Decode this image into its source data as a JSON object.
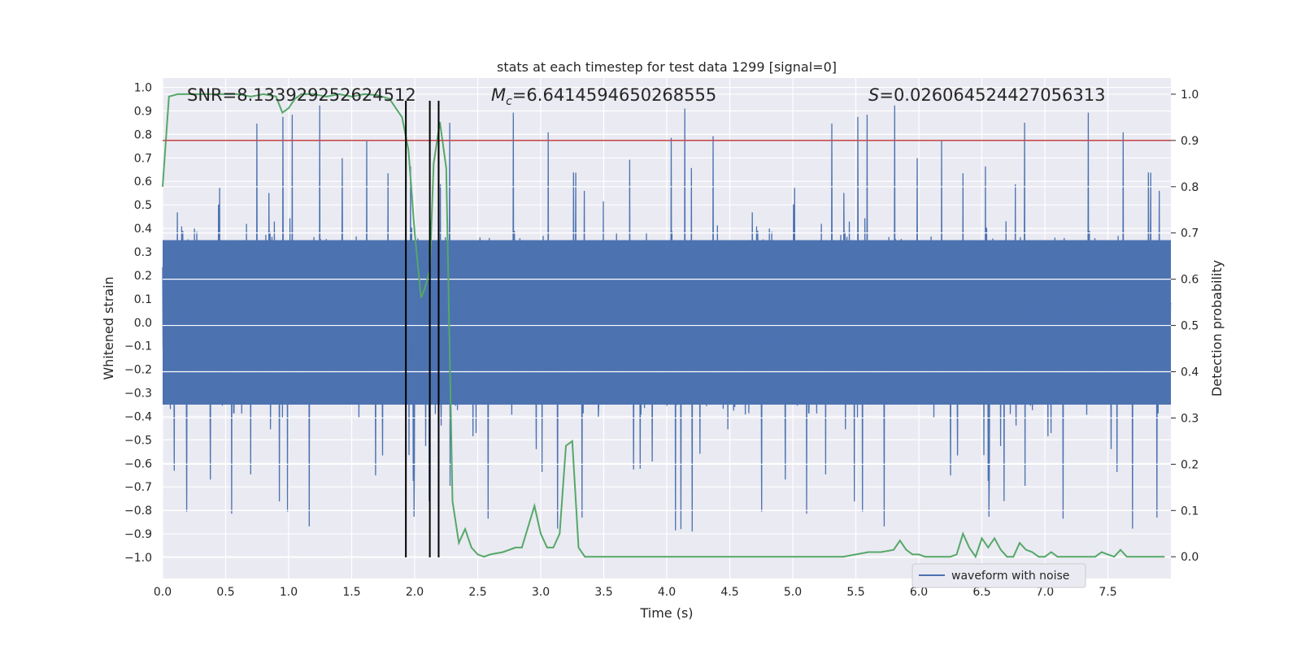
{
  "chart_data": {
    "type": "line",
    "title": "stats at each timestep for test data 1299 [signal=0]",
    "xlabel": "Time (s)",
    "ylabel": "Whitened strain",
    "y2label": "Detection probability",
    "xlim": [
      0.0,
      8.0
    ],
    "ylim": [
      -1.09,
      1.04
    ],
    "y2lim": [
      -0.047,
      1.035
    ],
    "x_ticks": [
      "0.0",
      "0.5",
      "1.0",
      "1.5",
      "2.0",
      "2.5",
      "3.0",
      "3.5",
      "4.0",
      "4.5",
      "5.0",
      "5.5",
      "6.0",
      "6.5",
      "7.0",
      "7.5"
    ],
    "y_ticks": [
      "1.0",
      "0.9",
      "0.8",
      "0.7",
      "0.6",
      "0.5",
      "0.4",
      "0.3",
      "0.2",
      "0.1",
      "0.0",
      "−0.1",
      "−0.2",
      "−0.3",
      "−0.4",
      "−0.5",
      "−0.6",
      "−0.7",
      "−0.8",
      "−0.9",
      "−1.0"
    ],
    "y2_ticks": [
      "1.0",
      "0.9",
      "0.8",
      "0.7",
      "0.6",
      "0.5",
      "0.4",
      "0.3",
      "0.2",
      "0.1",
      "0.0"
    ],
    "grid": true,
    "legend_position": "lower-right",
    "annotations": {
      "snr": "SNR=8.133929252624512",
      "mc_symbol": "M",
      "mc_sub": "c",
      "mc_value": "=6.6414594650268555",
      "s_symbol": "S",
      "s_value": "=0.026064524427056313"
    },
    "series": [
      {
        "name": "waveform with noise",
        "color": "#4c72b0",
        "axis": "left",
        "kind": "noise",
        "envelope_typical": 0.42,
        "peak_max": 0.95,
        "trough_min": -1.0
      },
      {
        "color": "#55a868",
        "axis": "right",
        "x": [
          0.0,
          0.05,
          0.12,
          0.2,
          0.3,
          0.4,
          0.5,
          0.6,
          0.7,
          0.8,
          0.9,
          0.95,
          1.0,
          1.05,
          1.1,
          1.2,
          1.3,
          1.4,
          1.5,
          1.6,
          1.7,
          1.8,
          1.9,
          1.95,
          2.0,
          2.05,
          2.08,
          2.12,
          2.15,
          2.2,
          2.25,
          2.3,
          2.35,
          2.4,
          2.45,
          2.5,
          2.55,
          2.6,
          2.7,
          2.8,
          2.85,
          2.95,
          3.0,
          3.05,
          3.1,
          3.15,
          3.2,
          3.25,
          3.3,
          3.35,
          3.4,
          3.45,
          3.5,
          3.6,
          3.8,
          4.0,
          4.2,
          4.4,
          4.6,
          4.8,
          5.0,
          5.2,
          5.4,
          5.6,
          5.7,
          5.8,
          5.85,
          5.9,
          5.95,
          6.0,
          6.05,
          6.1,
          6.15,
          6.2,
          6.25,
          6.3,
          6.35,
          6.4,
          6.45,
          6.5,
          6.55,
          6.6,
          6.65,
          6.7,
          6.75,
          6.8,
          6.85,
          6.9,
          6.95,
          7.0,
          7.05,
          7.1,
          7.15,
          7.2,
          7.3,
          7.4,
          7.45,
          7.5,
          7.55,
          7.6,
          7.65,
          7.7,
          7.75,
          7.8,
          7.85,
          7.9,
          7.95
        ],
        "y": [
          0.8,
          0.995,
          1.0,
          1.0,
          1.0,
          1.0,
          1.0,
          1.0,
          0.995,
          1.0,
          0.995,
          0.96,
          0.97,
          0.99,
          1.0,
          1.0,
          0.995,
          1.0,
          0.995,
          1.0,
          0.998,
          0.99,
          0.95,
          0.88,
          0.7,
          0.56,
          0.58,
          0.62,
          0.85,
          0.94,
          0.84,
          0.12,
          0.03,
          0.06,
          0.02,
          0.005,
          0.0,
          0.005,
          0.01,
          0.02,
          0.02,
          0.11,
          0.05,
          0.02,
          0.02,
          0.05,
          0.24,
          0.25,
          0.02,
          0.0,
          0.0,
          0.0,
          0.0,
          0.0,
          0.0,
          0.0,
          0.0,
          0.0,
          0.0,
          0.0,
          0.0,
          0.0,
          0.0,
          0.01,
          0.01,
          0.015,
          0.035,
          0.015,
          0.005,
          0.005,
          0.0,
          0.0,
          0.0,
          0.0,
          0.0,
          0.005,
          0.05,
          0.02,
          0.0,
          0.04,
          0.02,
          0.04,
          0.015,
          0.0,
          0.0,
          0.03,
          0.015,
          0.01,
          0.0,
          0.0,
          0.01,
          0.0,
          0.0,
          0.0,
          0.0,
          0.0,
          0.01,
          0.005,
          0.0,
          0.015,
          0.0,
          0.0,
          0.0,
          0.0,
          0.0,
          0.0,
          0.0
        ]
      }
    ],
    "threshold": {
      "y2": 0.9,
      "color": "#c44e52"
    },
    "vlines": [
      1.93,
      2.12,
      2.19
    ]
  }
}
